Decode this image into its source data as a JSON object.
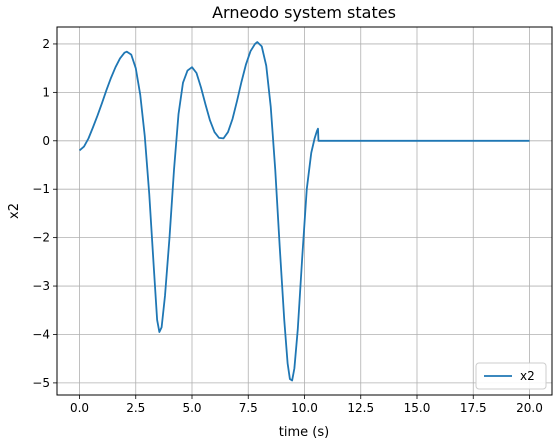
{
  "chart_data": {
    "type": "line",
    "title": "Arneodo system states",
    "xlabel": "time (s)",
    "ylabel": "x2",
    "xlim": [
      -1.0,
      21.0
    ],
    "ylim": [
      -5.25,
      2.35
    ],
    "xticks": [
      0.0,
      2.5,
      5.0,
      7.5,
      10.0,
      12.5,
      15.0,
      17.5,
      20.0
    ],
    "xtick_labels": [
      "0.0",
      "2.5",
      "5.0",
      "7.5",
      "10.0",
      "12.5",
      "15.0",
      "17.5",
      "20.0"
    ],
    "yticks": [
      2,
      1,
      0,
      -1,
      -2,
      -3,
      -4,
      -5
    ],
    "ytick_labels": [
      "2",
      "1",
      "0",
      "−1",
      "−2",
      "−3",
      "−4",
      "−5"
    ],
    "grid": true,
    "legend_position": "lower right",
    "series": [
      {
        "name": "x2",
        "color": "#1f77b4",
        "points": [
          [
            0.0,
            -0.2
          ],
          [
            0.2,
            -0.12
          ],
          [
            0.4,
            0.05
          ],
          [
            0.6,
            0.28
          ],
          [
            0.8,
            0.52
          ],
          [
            1.0,
            0.78
          ],
          [
            1.2,
            1.05
          ],
          [
            1.4,
            1.3
          ],
          [
            1.6,
            1.52
          ],
          [
            1.8,
            1.7
          ],
          [
            2.0,
            1.82
          ],
          [
            2.1,
            1.84
          ],
          [
            2.3,
            1.78
          ],
          [
            2.5,
            1.5
          ],
          [
            2.7,
            0.95
          ],
          [
            2.9,
            0.1
          ],
          [
            3.1,
            -1.1
          ],
          [
            3.3,
            -2.6
          ],
          [
            3.45,
            -3.7
          ],
          [
            3.55,
            -3.95
          ],
          [
            3.65,
            -3.85
          ],
          [
            3.8,
            -3.2
          ],
          [
            4.0,
            -2.0
          ],
          [
            4.2,
            -0.6
          ],
          [
            4.4,
            0.55
          ],
          [
            4.6,
            1.2
          ],
          [
            4.8,
            1.45
          ],
          [
            5.0,
            1.52
          ],
          [
            5.2,
            1.4
          ],
          [
            5.4,
            1.1
          ],
          [
            5.6,
            0.75
          ],
          [
            5.8,
            0.42
          ],
          [
            6.0,
            0.18
          ],
          [
            6.2,
            0.06
          ],
          [
            6.4,
            0.05
          ],
          [
            6.6,
            0.18
          ],
          [
            6.8,
            0.45
          ],
          [
            7.0,
            0.82
          ],
          [
            7.2,
            1.22
          ],
          [
            7.4,
            1.58
          ],
          [
            7.6,
            1.85
          ],
          [
            7.8,
            2.0
          ],
          [
            7.9,
            2.04
          ],
          [
            8.1,
            1.95
          ],
          [
            8.3,
            1.55
          ],
          [
            8.5,
            0.7
          ],
          [
            8.7,
            -0.6
          ],
          [
            8.9,
            -2.2
          ],
          [
            9.1,
            -3.7
          ],
          [
            9.25,
            -4.6
          ],
          [
            9.35,
            -4.92
          ],
          [
            9.45,
            -4.95
          ],
          [
            9.55,
            -4.7
          ],
          [
            9.7,
            -3.9
          ],
          [
            9.9,
            -2.4
          ],
          [
            10.1,
            -1.0
          ],
          [
            10.3,
            -0.25
          ],
          [
            10.45,
            0.05
          ],
          [
            10.55,
            0.2
          ],
          [
            10.6,
            0.25
          ],
          [
            10.62,
            0.0
          ],
          [
            12.5,
            0.0
          ],
          [
            15.0,
            0.0
          ],
          [
            17.5,
            0.0
          ],
          [
            20.0,
            0.0
          ]
        ]
      }
    ]
  }
}
